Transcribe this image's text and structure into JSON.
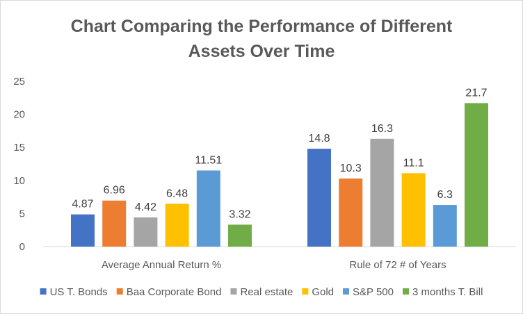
{
  "chart_data": {
    "type": "bar",
    "title": "Chart Comparing the Performance of Different Assets Over Time",
    "title_lines": [
      "Chart Comparing the Performance of Different",
      "Assets Over Time"
    ],
    "categories": [
      "Average Annual Return %",
      "Rule of 72 # of Years"
    ],
    "series": [
      {
        "name": "US T. Bonds",
        "color": "#4472C4",
        "values": [
          4.87,
          14.8
        ],
        "labels": [
          "4.87",
          "14.8"
        ]
      },
      {
        "name": "Baa Corporate Bond",
        "color": "#ED7D31",
        "values": [
          6.96,
          10.3
        ],
        "labels": [
          "6.96",
          "10.3"
        ]
      },
      {
        "name": "Real estate",
        "color": "#A5A5A5",
        "values": [
          4.42,
          16.3
        ],
        "labels": [
          "4.42",
          "16.3"
        ]
      },
      {
        "name": "Gold",
        "color": "#FFC000",
        "values": [
          6.48,
          11.1
        ],
        "labels": [
          "6.48",
          "11.1"
        ]
      },
      {
        "name": "S&P 500",
        "color": "#5B9BD5",
        "values": [
          11.51,
          6.3
        ],
        "labels": [
          "11.51",
          "6.3"
        ]
      },
      {
        "name": "3 months T. Bill",
        "color": "#70AD47",
        "values": [
          3.32,
          21.7
        ],
        "labels": [
          "3.32",
          "21.7"
        ]
      }
    ],
    "xlabel": "",
    "ylabel": "",
    "ylim": [
      0,
      25
    ],
    "yticks": [
      0,
      5,
      10,
      15,
      20,
      25
    ],
    "grid": false,
    "legend": "bottom"
  }
}
